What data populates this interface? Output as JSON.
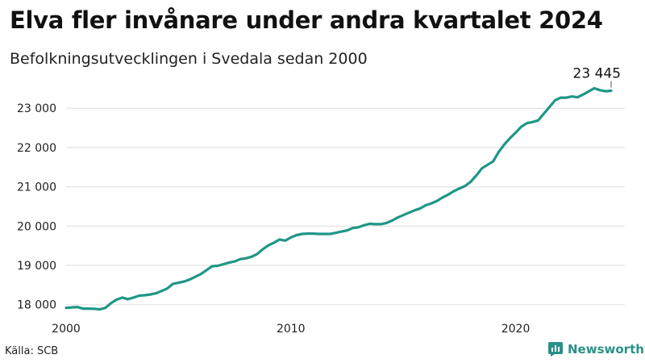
{
  "header": {
    "title": "Elva fler invånare under andra kvartalet 2024",
    "subtitle": "Befolkningsutvecklingen i Svedala sedan 2000"
  },
  "footer": {
    "source": "Källa: SCB",
    "brand": "Newsworthy"
  },
  "colors": {
    "line": "#1f9786",
    "grid": "#dddddd",
    "brand": "#2a9187"
  },
  "chart_data": {
    "type": "line",
    "title": "Elva fler invånare under andra kvartalet 2024",
    "subtitle": "Befolkningsutvecklingen i Svedala sedan 2000",
    "xlabel": "",
    "ylabel": "",
    "xlim": [
      2000,
      2024.5
    ],
    "ylim": [
      17850,
      23600
    ],
    "x_ticks": [
      2000,
      2010,
      2020
    ],
    "x_tick_labels": [
      "2000",
      "2010",
      "2020"
    ],
    "y_ticks": [
      18000,
      19000,
      20000,
      21000,
      22000,
      23000
    ],
    "y_tick_labels": [
      "18 000",
      "19 000",
      "20 000",
      "21 000",
      "22 000",
      "23 000"
    ],
    "grid": true,
    "end_label": "23 445",
    "x": [
      2000.0,
      2000.25,
      2000.5,
      2000.75,
      2001.0,
      2001.25,
      2001.5,
      2001.75,
      2002.0,
      2002.25,
      2002.5,
      2002.75,
      2003.0,
      2003.25,
      2003.5,
      2003.75,
      2004.0,
      2004.25,
      2004.5,
      2004.75,
      2005.0,
      2005.25,
      2005.5,
      2005.75,
      2006.0,
      2006.25,
      2006.5,
      2006.75,
      2007.0,
      2007.25,
      2007.5,
      2007.75,
      2008.0,
      2008.25,
      2008.5,
      2008.75,
      2009.0,
      2009.25,
      2009.5,
      2009.75,
      2010.0,
      2010.25,
      2010.5,
      2010.75,
      2011.0,
      2011.25,
      2011.5,
      2011.75,
      2012.0,
      2012.25,
      2012.5,
      2012.75,
      2013.0,
      2013.25,
      2013.5,
      2013.75,
      2014.0,
      2014.25,
      2014.5,
      2014.75,
      2015.0,
      2015.25,
      2015.5,
      2015.75,
      2016.0,
      2016.25,
      2016.5,
      2016.75,
      2017.0,
      2017.25,
      2017.5,
      2017.75,
      2018.0,
      2018.25,
      2018.5,
      2018.75,
      2019.0,
      2019.25,
      2019.5,
      2019.75,
      2020.0,
      2020.25,
      2020.5,
      2020.75,
      2021.0,
      2021.25,
      2021.5,
      2021.75,
      2022.0,
      2022.25,
      2022.5,
      2022.75,
      2023.0,
      2023.25,
      2023.5,
      2023.75,
      2024.0,
      2024.25
    ],
    "series": [
      {
        "values": [
          17920,
          17930,
          17940,
          17900,
          17900,
          17895,
          17880,
          17920,
          18040,
          18130,
          18180,
          18140,
          18180,
          18230,
          18240,
          18260,
          18290,
          18350,
          18410,
          18530,
          18560,
          18590,
          18640,
          18710,
          18780,
          18880,
          18980,
          18990,
          19030,
          19070,
          19100,
          19160,
          19180,
          19220,
          19290,
          19410,
          19510,
          19580,
          19660,
          19630,
          19710,
          19770,
          19800,
          19810,
          19810,
          19800,
          19800,
          19800,
          19830,
          19860,
          19890,
          19950,
          19970,
          20020,
          20060,
          20050,
          20050,
          20080,
          20140,
          20220,
          20280,
          20340,
          20400,
          20450,
          20530,
          20580,
          20640,
          20730,
          20800,
          20890,
          20960,
          21020,
          21130,
          21290,
          21470,
          21560,
          21650,
          21890,
          22080,
          22240,
          22380,
          22530,
          22620,
          22650,
          22690,
          22860,
          23030,
          23200,
          23270,
          23270,
          23300,
          23280,
          23350,
          23430,
          23510,
          23460,
          23434,
          23445
        ]
      }
    ]
  }
}
